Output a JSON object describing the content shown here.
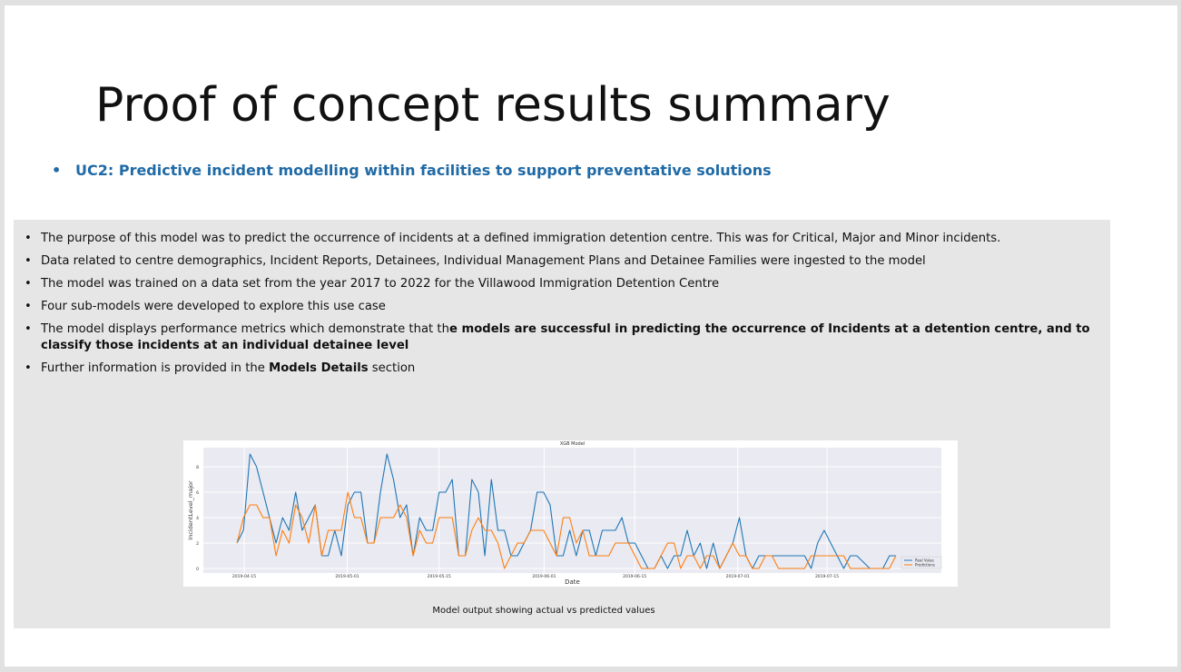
{
  "slide": {
    "title": "Proof of concept results summary",
    "subtitle_bullet": "•",
    "subtitle": "UC2: Predictive incident modelling within facilities to support preventative solutions",
    "bullet_char": "•",
    "bullets": [
      "The purpose of this model was to predict the occurrence of incidents at a defined immigration detention centre. This was for Critical, Major and Minor incidents.",
      "Data related to centre demographics, Incident Reports, Detainees, Individual Management Plans and Detainee Families were ingested to the model",
      "The model was trained on a data set from the year 2017 to 2022 for the Villawood Immigration Detention Centre",
      "Four sub-models were developed to explore this use case"
    ],
    "bullet5": {
      "prefix": "The model displays performance metrics which demonstrate that th",
      "bold": "e models are successful in predicting the occurrence of Incidents at a detention centre, and to classify those incidents at an individual detainee level"
    },
    "bullet6": {
      "prefix": "Further information is provided in the ",
      "bold": "Models Details",
      "suffix": " section"
    },
    "caption": "Model output showing actual vs predicted values"
  },
  "chart_data": {
    "type": "line",
    "title": "XGB Model",
    "xlabel": "Date",
    "ylabel": "IncidentLevel_major",
    "ylim": [
      0,
      9
    ],
    "yticks": [
      0,
      2,
      4,
      6,
      8
    ],
    "xticks": [
      "2019-04-15",
      "2019-05-01",
      "2019-05-15",
      "2019-06-01",
      "2019-06-15",
      "2019-07-01",
      "2019-07-15"
    ],
    "grid": true,
    "legend_position": "bottom-right",
    "series": [
      {
        "name": "Real Value",
        "color": "#1f77b4",
        "values": [
          2,
          3,
          9,
          8,
          6,
          4,
          2,
          4,
          3,
          6,
          3,
          4,
          5,
          1,
          1,
          3,
          1,
          5,
          6,
          6,
          2,
          2,
          6,
          9,
          7,
          4,
          5,
          1,
          4,
          3,
          3,
          6,
          6,
          7,
          1,
          1,
          7,
          6,
          1,
          7,
          3,
          3,
          1,
          1,
          2,
          3,
          6,
          6,
          5,
          1,
          1,
          3,
          1,
          3,
          3,
          1,
          3,
          3,
          3,
          4,
          2,
          2,
          1,
          0,
          0,
          1,
          0,
          1,
          1,
          3,
          1,
          2,
          0,
          2,
          0,
          1,
          2,
          4,
          1,
          0,
          1,
          1,
          1,
          1,
          1,
          1,
          1,
          1,
          0,
          2,
          3,
          2,
          1,
          0,
          1,
          1,
          0.5,
          0,
          0,
          0,
          1,
          1
        ]
      },
      {
        "name": "Predictions",
        "color": "#ff7f0e",
        "values": [
          2,
          4,
          5,
          5,
          4,
          4,
          1,
          3,
          2,
          5,
          4,
          2,
          5,
          1,
          3,
          3,
          3,
          6,
          4,
          4,
          2,
          2,
          4,
          4,
          4,
          5,
          4,
          1,
          3,
          2,
          2,
          4,
          4,
          4,
          1,
          1,
          3,
          4,
          3,
          3,
          2,
          0,
          1,
          2,
          2,
          3,
          3,
          3,
          2,
          1,
          4,
          4,
          2,
          3,
          1,
          1,
          1,
          1,
          2,
          2,
          2,
          1,
          0,
          0,
          0,
          1,
          2,
          2,
          0,
          1,
          1,
          0,
          1,
          1,
          0,
          1,
          2,
          1,
          1,
          0,
          0,
          1,
          1,
          0,
          0,
          0,
          0,
          0,
          1,
          1,
          1,
          1,
          1,
          1,
          0,
          0,
          0,
          0,
          0,
          0,
          0,
          1
        ]
      }
    ]
  }
}
